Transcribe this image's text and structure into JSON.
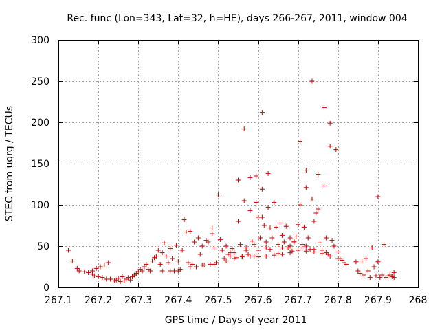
{
  "chart_data": {
    "type": "scatter",
    "title": "Rec. func (Lon=343, Lat=32, h=HE), days 266-267, 2011, window 004",
    "xlabel": "GPS time / Days of year 2011",
    "ylabel": "STEC from uqrg / TECUs",
    "xlim": [
      267.1,
      268
    ],
    "ylim": [
      0,
      300
    ],
    "xticks": [
      "267.1",
      "267.2",
      "267.3",
      "267.4",
      "267.5",
      "267.6",
      "267.7",
      "267.8",
      "267.9",
      "268"
    ],
    "yticks": [
      "0",
      "50",
      "100",
      "150",
      "200",
      "250",
      "300"
    ],
    "grid": true,
    "marker": "+",
    "color": "#cc0000",
    "series": [
      {
        "name": "STEC",
        "points": [
          [
            267.125,
            45
          ],
          [
            267.135,
            32
          ],
          [
            267.147,
            23
          ],
          [
            267.152,
            20
          ],
          [
            267.165,
            19
          ],
          [
            267.175,
            18
          ],
          [
            267.185,
            20
          ],
          [
            267.185,
            16
          ],
          [
            267.19,
            14
          ],
          [
            267.195,
            23
          ],
          [
            267.205,
            25
          ],
          [
            267.2,
            13
          ],
          [
            267.21,
            12
          ],
          [
            267.215,
            27
          ],
          [
            267.22,
            10
          ],
          [
            267.225,
            30
          ],
          [
            267.23,
            10
          ],
          [
            267.24,
            8
          ],
          [
            267.245,
            9
          ],
          [
            267.25,
            11
          ],
          [
            267.255,
            7
          ],
          [
            267.26,
            13
          ],
          [
            267.265,
            8
          ],
          [
            267.27,
            10
          ],
          [
            267.275,
            12
          ],
          [
            267.28,
            9
          ],
          [
            267.285,
            13
          ],
          [
            267.29,
            15
          ],
          [
            267.295,
            17
          ],
          [
            267.3,
            19
          ],
          [
            267.305,
            22
          ],
          [
            267.31,
            20
          ],
          [
            267.315,
            25
          ],
          [
            267.32,
            28
          ],
          [
            267.325,
            22
          ],
          [
            267.33,
            20
          ],
          [
            267.335,
            32
          ],
          [
            267.34,
            36
          ],
          [
            267.345,
            38
          ],
          [
            267.35,
            45
          ],
          [
            267.355,
            28
          ],
          [
            267.36,
            42
          ],
          [
            267.365,
            54
          ],
          [
            267.37,
            38
          ],
          [
            267.375,
            30
          ],
          [
            267.38,
            47
          ],
          [
            267.385,
            35
          ],
          [
            267.39,
            20
          ],
          [
            267.395,
            51
          ],
          [
            267.4,
            32
          ],
          [
            267.405,
            22
          ],
          [
            267.41,
            45
          ],
          [
            267.415,
            82
          ],
          [
            267.42,
            67
          ],
          [
            267.425,
            30
          ],
          [
            267.43,
            68
          ],
          [
            267.435,
            28
          ],
          [
            267.44,
            55
          ],
          [
            267.445,
            25
          ],
          [
            267.45,
            60
          ],
          [
            267.455,
            40
          ],
          [
            267.46,
            50
          ],
          [
            267.465,
            27
          ],
          [
            267.47,
            57
          ],
          [
            267.475,
            55
          ],
          [
            267.48,
            28
          ],
          [
            267.485,
            65
          ],
          [
            267.485,
            72
          ],
          [
            267.49,
            48
          ],
          [
            267.495,
            30
          ],
          [
            267.5,
            112
          ],
          [
            267.505,
            58
          ],
          [
            267.51,
            45
          ],
          [
            267.515,
            35
          ],
          [
            267.52,
            50
          ],
          [
            267.525,
            40
          ],
          [
            267.53,
            38
          ],
          [
            267.535,
            47
          ],
          [
            267.54,
            42
          ],
          [
            267.545,
            36
          ],
          [
            267.55,
            80
          ],
          [
            267.55,
            130
          ],
          [
            267.555,
            52
          ],
          [
            267.56,
            38
          ],
          [
            267.565,
            192
          ],
          [
            267.565,
            105
          ],
          [
            267.57,
            48
          ],
          [
            267.575,
            40
          ],
          [
            267.58,
            133
          ],
          [
            267.58,
            93
          ],
          [
            267.585,
            56
          ],
          [
            267.59,
            38
          ],
          [
            267.595,
            135
          ],
          [
            267.595,
            103
          ],
          [
            267.6,
            85
          ],
          [
            267.605,
            60
          ],
          [
            267.61,
            212
          ],
          [
            267.61,
            119
          ],
          [
            267.61,
            85
          ],
          [
            267.615,
            75
          ],
          [
            267.62,
            48
          ],
          [
            267.625,
            138
          ],
          [
            267.625,
            97
          ],
          [
            267.63,
            72
          ],
          [
            267.635,
            60
          ],
          [
            267.64,
            103
          ],
          [
            267.645,
            73
          ],
          [
            267.65,
            41
          ],
          [
            267.655,
            78
          ],
          [
            267.66,
            63
          ],
          [
            267.665,
            55
          ],
          [
            267.67,
            74
          ],
          [
            267.675,
            48
          ],
          [
            267.68,
            60
          ],
          [
            267.685,
            44
          ],
          [
            267.69,
            56
          ],
          [
            267.695,
            62
          ],
          [
            267.7,
            76
          ],
          [
            267.705,
            177
          ],
          [
            267.705,
            100
          ],
          [
            267.71,
            52
          ],
          [
            267.715,
            73
          ],
          [
            267.72,
            142
          ],
          [
            267.72,
            121
          ],
          [
            267.725,
            60
          ],
          [
            267.73,
            46
          ],
          [
            267.735,
            250
          ],
          [
            267.735,
            107
          ],
          [
            267.74,
            80
          ],
          [
            267.745,
            90
          ],
          [
            267.75,
            137
          ],
          [
            267.75,
            95
          ],
          [
            267.755,
            54
          ],
          [
            267.76,
            45
          ],
          [
            267.765,
            218
          ],
          [
            267.765,
            123
          ],
          [
            267.77,
            60
          ],
          [
            267.775,
            40
          ],
          [
            267.78,
            199
          ],
          [
            267.78,
            171
          ],
          [
            267.785,
            57
          ],
          [
            267.79,
            50
          ],
          [
            267.795,
            167
          ],
          [
            267.8,
            43
          ],
          [
            267.805,
            35
          ],
          [
            267.81,
            33
          ],
          [
            267.815,
            30
          ],
          [
            267.82,
            28
          ],
          [
            267.845,
            31
          ],
          [
            267.85,
            20
          ],
          [
            267.855,
            17
          ],
          [
            267.86,
            32
          ],
          [
            267.865,
            15
          ],
          [
            267.87,
            35
          ],
          [
            267.875,
            20
          ],
          [
            267.88,
            12
          ],
          [
            267.885,
            48
          ],
          [
            267.89,
            25
          ],
          [
            267.895,
            14
          ],
          [
            267.9,
            110
          ],
          [
            267.9,
            31
          ],
          [
            267.905,
            12
          ],
          [
            267.91,
            15
          ],
          [
            267.915,
            52
          ],
          [
            267.92,
            12
          ],
          [
            267.925,
            14
          ],
          [
            267.93,
            15
          ],
          [
            267.935,
            13
          ],
          [
            267.94,
            18
          ],
          [
            267.94,
            12
          ],
          [
            267.36,
            20
          ],
          [
            267.38,
            20
          ],
          [
            267.4,
            20
          ],
          [
            267.43,
            25
          ],
          [
            267.46,
            27
          ],
          [
            267.49,
            28
          ],
          [
            267.52,
            32
          ],
          [
            267.54,
            35
          ],
          [
            267.56,
            37
          ],
          [
            267.58,
            38
          ],
          [
            267.6,
            37
          ],
          [
            267.62,
            38
          ],
          [
            267.64,
            39
          ],
          [
            267.66,
            40
          ],
          [
            267.68,
            42
          ],
          [
            267.7,
            45
          ],
          [
            267.72,
            44
          ],
          [
            267.74,
            43
          ],
          [
            267.76,
            41
          ],
          [
            267.78,
            38
          ],
          [
            267.8,
            35
          ],
          [
            267.53,
            42
          ],
          [
            267.57,
            45
          ],
          [
            267.59,
            52
          ],
          [
            267.62,
            55
          ],
          [
            267.65,
            52
          ],
          [
            267.68,
            50
          ],
          [
            267.71,
            48
          ],
          [
            267.74,
            46
          ],
          [
            267.77,
            42
          ],
          [
            267.6,
            45
          ],
          [
            267.63,
            46
          ],
          [
            267.66,
            48
          ],
          [
            267.69,
            55
          ],
          [
            267.72,
            50
          ]
        ]
      }
    ]
  }
}
